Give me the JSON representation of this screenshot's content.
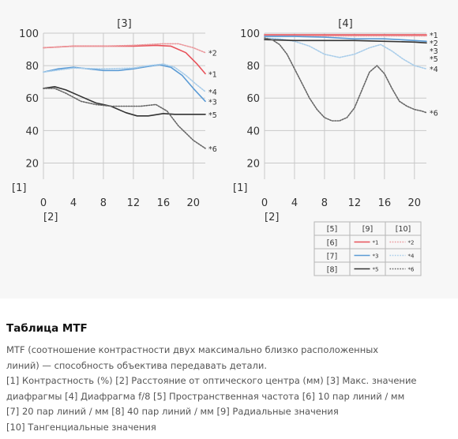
{
  "chart_data": [
    {
      "type": "line",
      "title": "[3]",
      "xlabel": "[2]",
      "ylabel": "[1]",
      "xlim": [
        0,
        21.6
      ],
      "ylim": [
        10,
        100
      ],
      "xticks": [
        0,
        4,
        8,
        12,
        16,
        20
      ],
      "yticks": [
        20,
        40,
        60,
        80,
        100
      ],
      "series": [
        {
          "name": "*1",
          "color": "#e8525a",
          "dash": "solid",
          "x": [
            0,
            4,
            8,
            12,
            15,
            17,
            19,
            20.5,
            21.6
          ],
          "y": [
            91,
            92,
            92,
            92,
            92.5,
            92,
            88,
            81,
            75
          ]
        },
        {
          "name": "*2",
          "color": "#eb9a9e",
          "dash": "dotted",
          "x": [
            0,
            4,
            8,
            12,
            16,
            18,
            20,
            21.6
          ],
          "y": [
            91,
            92,
            92,
            92.5,
            93.5,
            93.5,
            91,
            88
          ]
        },
        {
          "name": "*3",
          "color": "#5b9bd5",
          "dash": "solid",
          "x": [
            0,
            2,
            4,
            6,
            8,
            10,
            12,
            14,
            15.5,
            17,
            18.5,
            20,
            21.6
          ],
          "y": [
            76,
            78,
            79,
            78,
            77,
            77,
            78,
            79.5,
            80.5,
            79,
            74,
            66,
            58
          ]
        },
        {
          "name": "*4",
          "color": "#a9cdea",
          "dash": "dotted",
          "x": [
            0,
            4,
            8,
            12,
            14,
            16,
            17.5,
            19,
            20.5,
            21.6
          ],
          "y": [
            76,
            78.5,
            78,
            78.5,
            80,
            81,
            79,
            74,
            68,
            64
          ]
        },
        {
          "name": "*5",
          "color": "#333333",
          "dash": "solid",
          "x": [
            0,
            1.5,
            3,
            5,
            7,
            9,
            11,
            12.5,
            14,
            16,
            17.5,
            19,
            21.6
          ],
          "y": [
            66,
            67,
            65,
            61,
            57,
            55,
            51,
            49,
            49,
            50.5,
            50,
            50,
            50
          ]
        },
        {
          "name": "*6",
          "color": "#666666",
          "dash": "dotted",
          "x": [
            0,
            1.5,
            3,
            5,
            7,
            9,
            11,
            13,
            15,
            16.5,
            18,
            20,
            21.6
          ],
          "y": [
            66,
            66,
            63,
            58,
            56,
            55,
            55,
            55,
            56,
            52,
            43,
            34,
            29
          ]
        }
      ]
    },
    {
      "type": "line",
      "title": "[4]",
      "xlabel": "[2]",
      "ylabel": "[1]",
      "xlim": [
        0,
        21.6
      ],
      "ylim": [
        10,
        100
      ],
      "xticks": [
        0,
        4,
        8,
        12,
        16,
        20
      ],
      "yticks": [
        20,
        40,
        60,
        80,
        100
      ],
      "series": [
        {
          "name": "*1",
          "color": "#e8525a",
          "dash": "solid",
          "x": [
            0,
            8,
            16,
            21.6
          ],
          "y": [
            99,
            99,
            99,
            99
          ]
        },
        {
          "name": "*2",
          "color": "#eb9a9e",
          "dash": "dotted",
          "x": [
            0,
            8,
            16,
            21.6
          ],
          "y": [
            98.3,
            98.3,
            98.3,
            98.3
          ]
        },
        {
          "name": "*3",
          "color": "#5b9bd5",
          "dash": "solid",
          "x": [
            0,
            4,
            8,
            12,
            16,
            18,
            20,
            21.6
          ],
          "y": [
            98,
            98,
            97.5,
            96.5,
            96.5,
            96,
            95.5,
            95
          ]
        },
        {
          "name": "*4",
          "color": "#a9cdea",
          "dash": "dotted",
          "x": [
            0,
            2,
            4,
            6,
            8,
            10,
            12,
            14,
            15.5,
            17,
            18.5,
            20,
            21.6
          ],
          "y": [
            97,
            96.5,
            95,
            92,
            87,
            85,
            87,
            91,
            93,
            89,
            84,
            80,
            78
          ]
        },
        {
          "name": "*5",
          "color": "#333333",
          "dash": "solid",
          "x": [
            0,
            4,
            8,
            12,
            16,
            20,
            21.6
          ],
          "y": [
            96,
            95.5,
            95.5,
            95.5,
            95,
            94.5,
            94
          ]
        },
        {
          "name": "*6",
          "color": "#666666",
          "dash": "dotted",
          "x": [
            0,
            1,
            2,
            3,
            4,
            5,
            6,
            7,
            8,
            9,
            10,
            11,
            12,
            13,
            14,
            15,
            16,
            17,
            18,
            19,
            20,
            21,
            21.6
          ],
          "y": [
            97,
            96,
            93,
            87,
            78,
            69,
            60,
            53,
            48,
            46,
            46,
            48,
            54,
            65,
            76,
            80,
            75,
            66,
            58,
            55,
            53,
            52,
            51
          ]
        }
      ]
    }
  ],
  "legend": {
    "col_headers": [
      "[5]",
      "[9]",
      "[10]"
    ],
    "rows": [
      {
        "label": "[6]",
        "radial": "*1",
        "tangential": "*2",
        "radial_color": "#e8525a",
        "tangential_color": "#eb9a9e"
      },
      {
        "label": "[7]",
        "radial": "*3",
        "tangential": "*4",
        "radial_color": "#5b9bd5",
        "tangential_color": "#a9cdea"
      },
      {
        "label": "[8]",
        "radial": "*5",
        "tangential": "*6",
        "radial_color": "#333333",
        "tangential_color": "#666666"
      }
    ]
  },
  "info": {
    "title": "Таблица MTF",
    "lines": [
      "MTF (соотношение контрастности двух максимально близко расположенных",
      "линий) — способность объектива передавать детали.",
      "[1] Контрастность (%) [2] Расстояние от оптического центра (мм) [3] Макс. значение",
      "диафрагмы [4] Диафрагма f/8 [5] Пространственная частота [6] 10 пар линий / мм",
      "[7] 20 пар линий / мм [8] 40 пар линий / мм [9] Радиальные значения",
      "[10] Тангенциальные значения"
    ]
  }
}
